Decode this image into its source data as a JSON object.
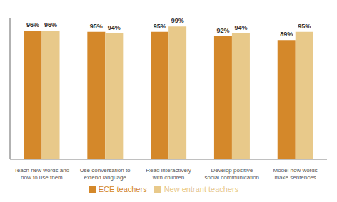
{
  "chart_data": {
    "type": "bar",
    "categories": [
      "Teach new words and\nhow to use them",
      "Use conversation to\nextend language",
      "Read interactively\nwith children",
      "Develop positive\nsocial communication",
      "Model how words\nmake sentences"
    ],
    "series": [
      {
        "name": "ECE teachers",
        "color": "#D4882A",
        "values": [
          96,
          95,
          95,
          92,
          89
        ],
        "value_labels": [
          "96%",
          "95%",
          "95%",
          "92%",
          "89%"
        ]
      },
      {
        "name": "New entrant teachers",
        "color": "#E8C98A",
        "values": [
          96,
          94,
          99,
          94,
          95
        ],
        "value_labels": [
          "96%",
          "94%",
          "99%",
          "94%",
          "95%"
        ]
      }
    ],
    "ylim": [
      0,
      105
    ],
    "grid": false,
    "legend": "bottom",
    "data_labels": true,
    "tick_labels": "x"
  }
}
